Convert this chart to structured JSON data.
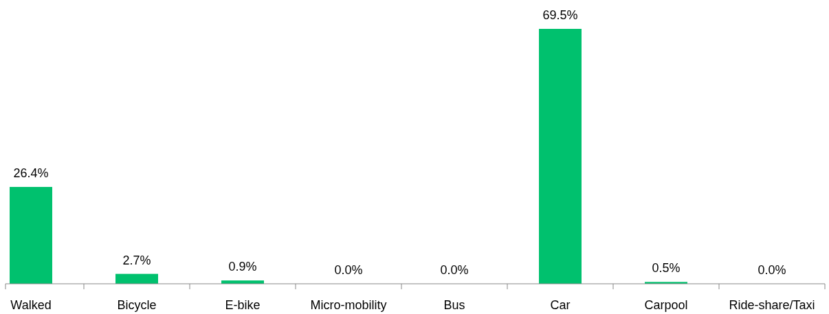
{
  "chart_data": {
    "type": "bar",
    "categories": [
      "Walked",
      "Bicycle",
      "E-bike",
      "Micro-mobility",
      "Bus",
      "Car",
      "Carpool",
      "Ride-share/Taxi"
    ],
    "values": [
      26.4,
      2.7,
      0.9,
      0.0,
      0.0,
      69.5,
      0.5,
      0.0
    ],
    "value_labels": [
      "26.4%",
      "2.7%",
      "0.9%",
      "0.0%",
      "0.0%",
      "69.5%",
      "0.5%",
      "0.0%"
    ],
    "color": "#00c16e"
  }
}
